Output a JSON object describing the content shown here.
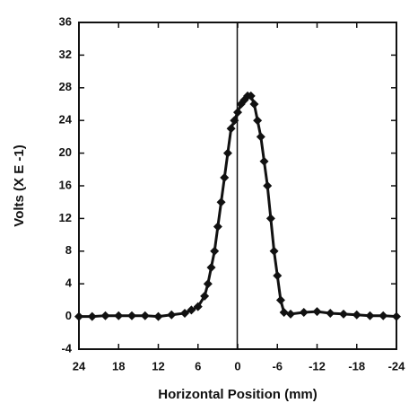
{
  "chart_data": {
    "type": "line",
    "marker": "diamond",
    "color": "#111111",
    "x_label": "Horizontal Position (mm)",
    "y_label": "Volts (X E -1)",
    "x": [
      24,
      22,
      20,
      18,
      16,
      14,
      12,
      10,
      8,
      7,
      6,
      5,
      4.5,
      4,
      3.5,
      3,
      2.5,
      2,
      1.5,
      1,
      0.5,
      0,
      -0.5,
      -1,
      -1.5,
      -2,
      -2.5,
      -3,
      -3.5,
      -4,
      -4.5,
      -5,
      -5.5,
      -6,
      -6.5,
      -7,
      -8,
      -10,
      -12,
      -14,
      -16,
      -18,
      -20,
      -22,
      -24
    ],
    "values": [
      0,
      0,
      0.1,
      0.1,
      0.1,
      0.1,
      0,
      0.2,
      0.4,
      0.8,
      1.2,
      2.5,
      4,
      6,
      8,
      11,
      14,
      17,
      20,
      23,
      24,
      25,
      26,
      26.5,
      27,
      27,
      26,
      24,
      22,
      19,
      16,
      12,
      8,
      5,
      2,
      0.5,
      0.3,
      0.5,
      0.6,
      0.4,
      0.3,
      0.2,
      0.1,
      0.1,
      0
    ],
    "xlim": [
      24,
      -24
    ],
    "xticks": [
      24,
      18,
      12,
      6,
      0,
      -6,
      -12,
      -18,
      -24
    ],
    "ylim": [
      -4,
      36
    ],
    "yticks": [
      -4,
      0,
      4,
      8,
      12,
      16,
      20,
      24,
      28,
      32,
      36
    ]
  }
}
